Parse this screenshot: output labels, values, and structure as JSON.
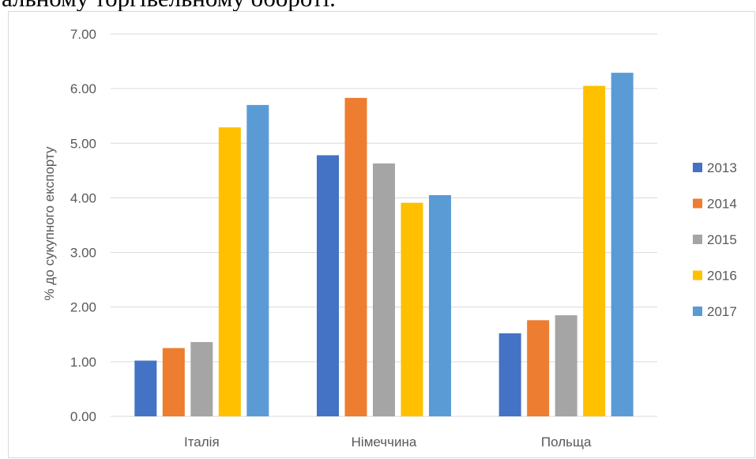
{
  "header_text": "альному торгівельному обороті.",
  "chart_data": {
    "type": "bar",
    "categories": [
      "Італія",
      "Німеччина",
      "Польща"
    ],
    "series": [
      {
        "name": "2013",
        "color": "#4472c4",
        "values": [
          1.02,
          4.78,
          1.52
        ]
      },
      {
        "name": "2014",
        "color": "#ed7d31",
        "values": [
          1.25,
          5.83,
          1.76
        ]
      },
      {
        "name": "2015",
        "color": "#a5a5a5",
        "values": [
          1.36,
          4.63,
          1.85
        ]
      },
      {
        "name": "2016",
        "color": "#ffc000",
        "values": [
          5.29,
          3.91,
          6.05
        ]
      },
      {
        "name": "2017",
        "color": "#5b9bd5",
        "values": [
          5.7,
          4.05,
          6.29
        ]
      }
    ],
    "ylabel": "% до сукупного експорту",
    "xlabel": "",
    "ylim": [
      0,
      7
    ],
    "yticks": [
      "0.00",
      "1.00",
      "2.00",
      "3.00",
      "4.00",
      "5.00",
      "6.00",
      "7.00"
    ],
    "grid": true,
    "legend_position": "right",
    "gridline_color": "#d9d9d9"
  }
}
